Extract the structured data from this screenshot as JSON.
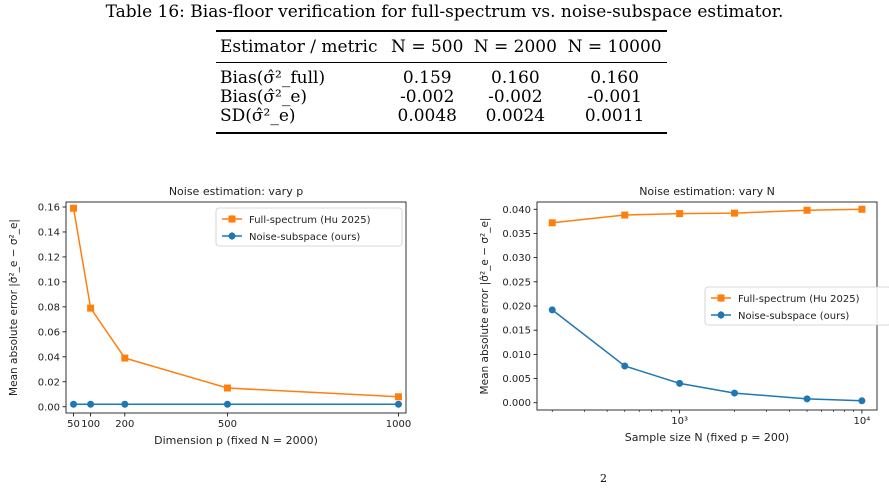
{
  "caption": "Table 16: Bias-floor verification for full-spectrum vs. noise-subspace estimator.",
  "table": {
    "header": [
      "Estimator / metric",
      "N = 500",
      "N = 2000",
      "N = 10000"
    ],
    "rows": [
      {
        "label": "Bias(σ̂²_full)",
        "values": [
          "0.159",
          "0.160",
          "0.160"
        ]
      },
      {
        "label": "Bias(σ̂²_e)",
        "values": [
          "-0.002",
          "-0.002",
          "-0.001"
        ]
      },
      {
        "label": "SD(σ̂²_e)",
        "values": [
          "0.0048",
          "0.0024",
          "0.0011"
        ]
      }
    ]
  },
  "footnote": "2",
  "chart_data": [
    {
      "type": "line",
      "title": "Noise estimation: vary p",
      "xlabel": "Dimension p (fixed N = 2000)",
      "ylabel": "Mean absolute error |σ̂²_e − σ²_e|",
      "x": [
        50,
        100,
        200,
        500,
        1000
      ],
      "xlim": [
        28,
        1022
      ],
      "ylim": [
        -0.005,
        0.164
      ],
      "xticks": [
        50,
        100,
        200,
        500,
        1000
      ],
      "xticklabels": [
        "50",
        "100",
        "200",
        "500",
        "1000"
      ],
      "yticks": [
        0.0,
        0.02,
        0.04,
        0.06,
        0.08,
        0.1,
        0.12,
        0.14,
        0.16
      ],
      "yticklabels": [
        "0.00",
        "0.02",
        "0.04",
        "0.06",
        "0.08",
        "0.10",
        "0.12",
        "0.14",
        "0.16"
      ],
      "series": [
        {
          "name": "Full-spectrum (Hu 2025)",
          "color": "#ff7f0e",
          "marker": "square",
          "values": [
            0.159,
            0.079,
            0.039,
            0.015,
            0.008
          ]
        },
        {
          "name": "Noise-subspace (ours)",
          "color": "#1f77b4",
          "marker": "circle",
          "values": [
            0.002,
            0.002,
            0.002,
            0.002,
            0.002
          ]
        }
      ],
      "legend": "top-right",
      "xscale": "linear"
    },
    {
      "type": "line",
      "title": "Noise estimation: vary N",
      "xlabel": "Sample size N (fixed p = 200)",
      "ylabel": "Mean absolute error |σ̂²_e − σ²_e|",
      "x": [
        200,
        500,
        1000,
        2000,
        5000,
        10000
      ],
      "xlim": [
        165,
        12100
      ],
      "ylim": [
        -0.0015,
        0.0415
      ],
      "xticks": [
        1000,
        10000
      ],
      "xticklabels": [
        "10³",
        "10⁴"
      ],
      "yticks": [
        0.0,
        0.005,
        0.01,
        0.015,
        0.02,
        0.025,
        0.03,
        0.035,
        0.04
      ],
      "yticklabels": [
        "0.000",
        "0.005",
        "0.010",
        "0.015",
        "0.020",
        "0.025",
        "0.030",
        "0.035",
        "0.040"
      ],
      "series": [
        {
          "name": "Full-spectrum (Hu 2025)",
          "color": "#ff7f0e",
          "marker": "square",
          "values": [
            0.0372,
            0.0388,
            0.0391,
            0.0392,
            0.0398,
            0.04
          ]
        },
        {
          "name": "Noise-subspace (ours)",
          "color": "#1f77b4",
          "marker": "circle",
          "values": [
            0.0192,
            0.0076,
            0.004,
            0.002,
            0.0008,
            0.0004
          ]
        }
      ],
      "legend": "center-right",
      "xscale": "log"
    }
  ]
}
